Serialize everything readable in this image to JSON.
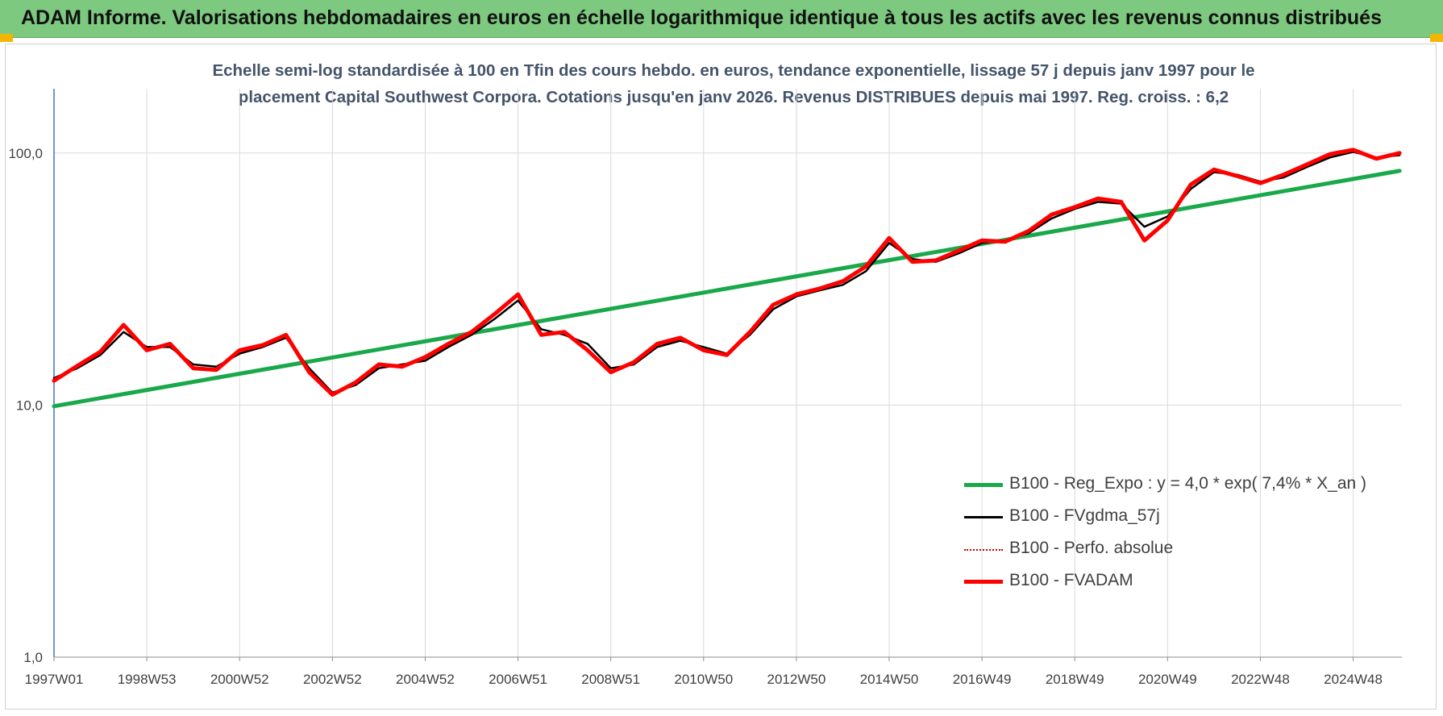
{
  "header": {
    "title": "ADAM Informe. Valorisations hebdomadaires en euros en échelle logarithmique identique à tous les actifs avec les revenus connus distribués"
  },
  "chart_data": {
    "type": "line",
    "title_lines": [
      "Echelle semi-log standardisée à 100 en Tfin des cours hebdo. en euros, tendance exponentielle, lissage 57 j depuis janv 1997 pour le",
      "placement Capital Southwest Corpora. Cotations jusqu'en janv 2026. Revenus DISTRIBUES depuis mai 1997. Reg. croiss. : 6,2"
    ],
    "y_scale": "log",
    "ylim": [
      1,
      180
    ],
    "y_ticks": [
      1,
      10,
      100
    ],
    "y_tick_labels": [
      "1,0",
      "10,0",
      "100,0"
    ],
    "xlim": [
      1997.0,
      2026.05
    ],
    "x_ticks": [
      1997.0,
      1999.0,
      2001.0,
      2003.0,
      2005.0,
      2007.0,
      2009.0,
      2011.0,
      2013.0,
      2015.0,
      2017.0,
      2019.0,
      2021.0,
      2023.0,
      2025.0
    ],
    "x_tick_labels": [
      "1997W01",
      "1998W53",
      "2000W52",
      "2002W52",
      "2004W52",
      "2006W51",
      "2008W51",
      "2010W50",
      "2012W50",
      "2014W50",
      "2016W49",
      "2018W49",
      "2020W49",
      "2022W48",
      "2024W48"
    ],
    "grid": "vertical and horizontal major",
    "legend_position": "bottom-right",
    "series": [
      {
        "name": "B100 - Reg_Expo : y = 4,0 * exp( 7,4% *  X_an )",
        "color": "#19a84a",
        "style": "solid-thick",
        "x": [
          1997.0,
          2026.0
        ],
        "y": [
          9.9,
          85.0
        ]
      },
      {
        "name": "B100 - FVgdma_57j",
        "color": "#000000",
        "style": "solid",
        "x": [
          1997.0,
          1997.5,
          1998.0,
          1998.5,
          1999.0,
          1999.5,
          2000.0,
          2000.5,
          2001.0,
          2001.5,
          2002.0,
          2002.5,
          2003.0,
          2003.5,
          2004.0,
          2004.5,
          2005.0,
          2005.5,
          2006.0,
          2006.5,
          2007.0,
          2007.5,
          2008.0,
          2008.5,
          2009.0,
          2009.5,
          2010.0,
          2010.5,
          2011.0,
          2011.5,
          2012.0,
          2012.5,
          2013.0,
          2013.5,
          2014.0,
          2014.5,
          2015.0,
          2015.5,
          2016.0,
          2016.5,
          2017.0,
          2017.5,
          2018.0,
          2018.5,
          2019.0,
          2019.5,
          2020.0,
          2020.5,
          2021.0,
          2021.5,
          2022.0,
          2022.5,
          2023.0,
          2023.5,
          2024.0,
          2024.5,
          2025.0,
          2025.5,
          2026.0
        ],
        "y": [
          12.8,
          14.0,
          15.8,
          19.5,
          17.0,
          17.0,
          14.5,
          14.2,
          16.0,
          17.0,
          18.5,
          14.0,
          11.2,
          12.0,
          14.0,
          14.5,
          15.0,
          17.0,
          19.0,
          22.0,
          26.0,
          20.0,
          19.0,
          17.5,
          14.0,
          14.5,
          17.0,
          18.0,
          17.0,
          16.0,
          19.0,
          24.0,
          27.0,
          28.5,
          30.0,
          34.0,
          44.0,
          38.0,
          37.0,
          40.0,
          44.0,
          45.0,
          48.0,
          55.0,
          60.0,
          64.0,
          63.0,
          51.0,
          56.0,
          72.0,
          84.0,
          82.0,
          77.0,
          80.0,
          88.0,
          96.0,
          101.0,
          96.0,
          98.0
        ]
      },
      {
        "name": "B100 - Perfo. absolue",
        "color": "#c00000",
        "style": "dotted",
        "x": [
          1997.0,
          1997.5,
          1998.0,
          1998.5,
          1999.0,
          1999.5,
          2000.0,
          2000.5,
          2001.0,
          2001.5,
          2002.0,
          2002.5,
          2003.0,
          2003.5,
          2004.0,
          2004.5,
          2005.0,
          2005.5,
          2006.0,
          2006.5,
          2007.0,
          2007.5,
          2008.0,
          2008.5,
          2009.0,
          2009.5,
          2010.0,
          2010.5,
          2011.0,
          2011.5,
          2012.0,
          2012.5,
          2013.0,
          2013.5,
          2014.0,
          2014.5,
          2015.0,
          2015.5,
          2016.0,
          2016.5,
          2017.0,
          2017.5,
          2018.0,
          2018.5,
          2019.0,
          2019.5,
          2020.0,
          2020.5,
          2021.0,
          2021.5,
          2022.0,
          2022.5,
          2023.0,
          2023.5,
          2024.0,
          2024.5,
          2025.0,
          2025.5,
          2026.0
        ],
        "y": [
          12.5,
          14.3,
          16.3,
          20.8,
          16.5,
          17.5,
          14.0,
          13.8,
          16.5,
          17.3,
          19.0,
          13.5,
          11.0,
          12.3,
          14.5,
          14.2,
          15.5,
          17.5,
          19.5,
          23.0,
          27.5,
          19.0,
          19.5,
          16.5,
          13.5,
          14.8,
          17.5,
          18.5,
          16.5,
          15.8,
          19.5,
          25.0,
          27.5,
          29.0,
          31.0,
          35.5,
          46.0,
          37.0,
          37.5,
          41.0,
          45.0,
          44.5,
          49.0,
          57.0,
          61.0,
          66.0,
          64.0,
          45.0,
          54.0,
          75.0,
          86.0,
          81.0,
          76.0,
          82.0,
          90.0,
          99.0,
          103.0,
          95.0,
          100.0
        ]
      },
      {
        "name": "B100 - FVADAM",
        "color": "#ff0000",
        "style": "solid-thick",
        "x": [
          1997.0,
          1997.5,
          1998.0,
          1998.5,
          1999.0,
          1999.5,
          2000.0,
          2000.5,
          2001.0,
          2001.5,
          2002.0,
          2002.5,
          2003.0,
          2003.5,
          2004.0,
          2004.5,
          2005.0,
          2005.5,
          2006.0,
          2006.5,
          2007.0,
          2007.5,
          2008.0,
          2008.5,
          2009.0,
          2009.5,
          2010.0,
          2010.5,
          2011.0,
          2011.5,
          2012.0,
          2012.5,
          2013.0,
          2013.5,
          2014.0,
          2014.5,
          2015.0,
          2015.5,
          2016.0,
          2016.5,
          2017.0,
          2017.5,
          2018.0,
          2018.5,
          2019.0,
          2019.5,
          2020.0,
          2020.5,
          2021.0,
          2021.5,
          2022.0,
          2022.5,
          2023.0,
          2023.5,
          2024.0,
          2024.5,
          2025.0,
          2025.5,
          2026.0
        ],
        "y": [
          12.5,
          14.3,
          16.3,
          20.8,
          16.5,
          17.5,
          14.0,
          13.8,
          16.5,
          17.3,
          19.0,
          13.5,
          11.0,
          12.3,
          14.5,
          14.2,
          15.5,
          17.5,
          19.5,
          23.0,
          27.5,
          19.0,
          19.5,
          16.5,
          13.5,
          14.8,
          17.5,
          18.5,
          16.5,
          15.8,
          19.5,
          25.0,
          27.5,
          29.0,
          31.0,
          35.5,
          46.0,
          37.0,
          37.5,
          41.0,
          45.0,
          44.5,
          49.0,
          57.0,
          61.0,
          66.0,
          64.0,
          45.0,
          54.0,
          75.0,
          86.0,
          81.0,
          76.0,
          82.0,
          90.0,
          99.0,
          103.0,
          95.0,
          100.0
        ]
      }
    ]
  }
}
